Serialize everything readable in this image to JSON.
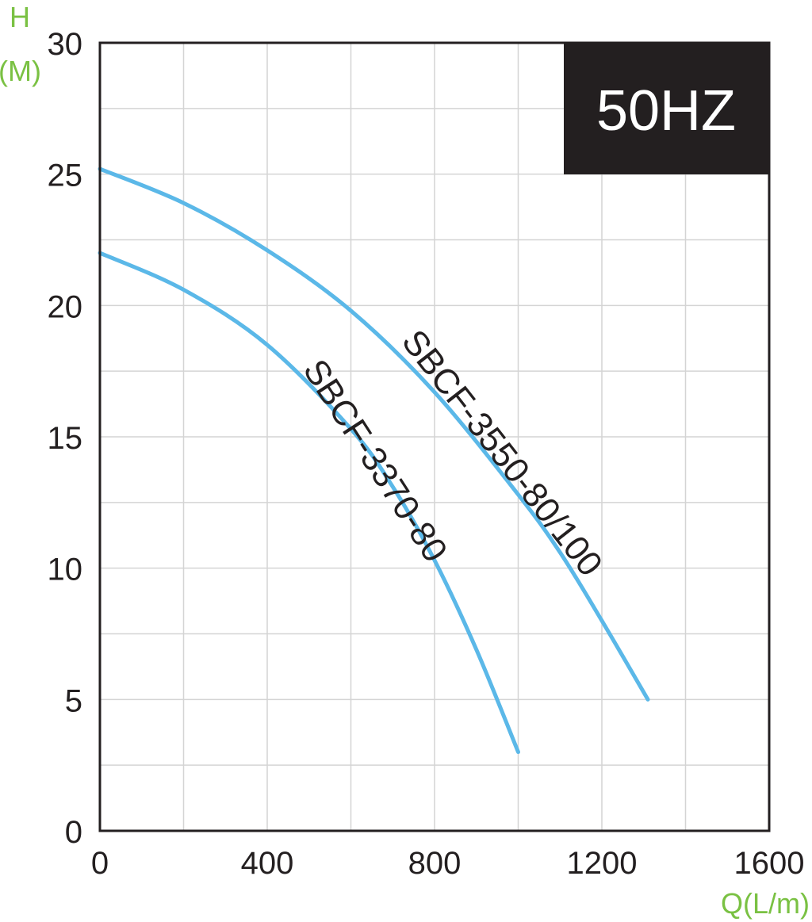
{
  "chart_data": {
    "type": "line",
    "badge": "50HZ",
    "ylabel": "H",
    "ylabel_unit": "(M)",
    "xlabel": "Q(L/m)",
    "xlim": [
      0,
      1600
    ],
    "ylim": [
      0,
      30
    ],
    "x_ticks": [
      "0",
      "400",
      "800",
      "1200",
      "1600"
    ],
    "y_ticks": [
      "0",
      "5",
      "10",
      "15",
      "20",
      "25",
      "30"
    ],
    "grid": true,
    "line_color": "#5bb8e8",
    "axis_title_color": "#7ac143",
    "series": [
      {
        "name": "SBCF-3550-80/100",
        "x": [
          0,
          200,
          400,
          600,
          800,
          1000,
          1100,
          1200,
          1310
        ],
        "y": [
          25.2,
          23.9,
          22.1,
          19.8,
          16.7,
          12.8,
          10.6,
          8.0,
          5.0
        ]
      },
      {
        "name": "SBCF-3370-80",
        "x": [
          0,
          200,
          400,
          600,
          700,
          800,
          900,
          1000
        ],
        "y": [
          22.0,
          20.6,
          18.5,
          15.3,
          13.1,
          10.3,
          6.9,
          3.0
        ]
      }
    ]
  }
}
